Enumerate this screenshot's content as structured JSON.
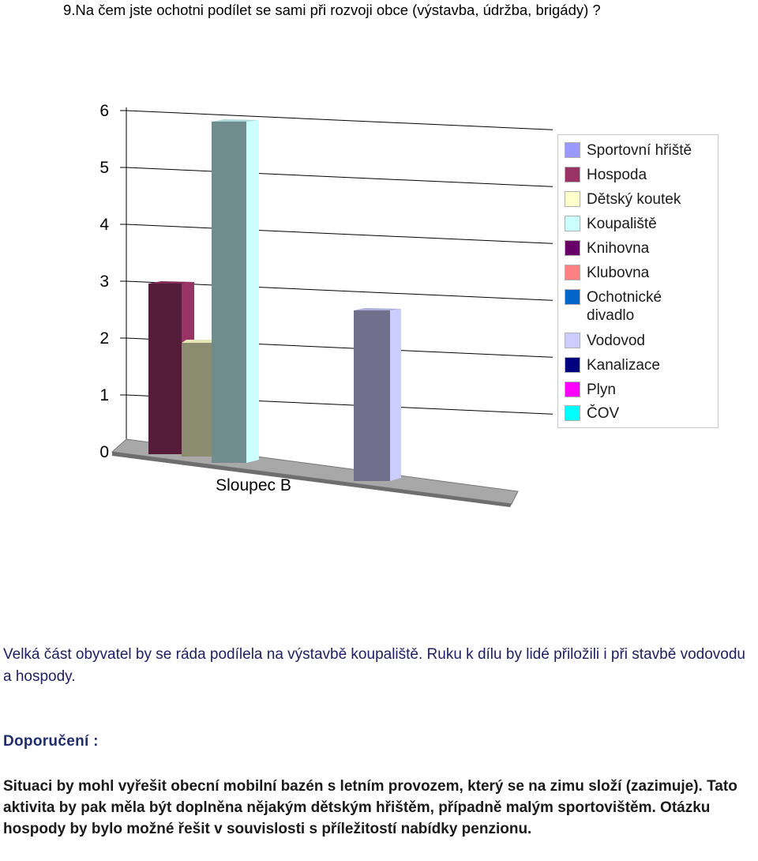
{
  "question": "9.Na čem jste ochotni podílet se sami při rozvoji obce (výstavba, údržba, brigády) ?",
  "chart_data": {
    "type": "bar",
    "categories": [
      "Sloupec B"
    ],
    "ylim": [
      0,
      6
    ],
    "yticks": [
      0,
      1,
      2,
      3,
      4,
      5,
      6
    ],
    "legend_position": "right",
    "series": [
      {
        "name": "Sportovní hřiště",
        "values": [
          0
        ],
        "color": "#9999ff"
      },
      {
        "name": "Hospoda",
        "values": [
          3
        ],
        "color": "#993366"
      },
      {
        "name": "Dětský koutek",
        "values": [
          2
        ],
        "color": "#ffffcc"
      },
      {
        "name": "Koupaliště",
        "values": [
          6
        ],
        "color": "#ccffff"
      },
      {
        "name": "Knihovna",
        "values": [
          0
        ],
        "color": "#660066"
      },
      {
        "name": "Klubovna",
        "values": [
          0
        ],
        "color": "#ff8080"
      },
      {
        "name": "Ochotnické divadlo",
        "values": [
          0
        ],
        "color": "#0066cc"
      },
      {
        "name": "Vodovod",
        "values": [
          3
        ],
        "color": "#ccccff"
      },
      {
        "name": "Kanalizace",
        "values": [
          0
        ],
        "color": "#000080"
      },
      {
        "name": "Plyn",
        "values": [
          0
        ],
        "color": "#ff00ff"
      },
      {
        "name": "ČOV",
        "values": [
          0
        ],
        "color": "#00ffff"
      }
    ]
  },
  "text": {
    "paragraph1": "Velká část obyvatel by se ráda podílela na výstavbě koupaliště. Ruku k dílu by lidé přiložili i při stavbě vodovodu a hospody.",
    "heading": "Doporučení :",
    "recommendation": "Situaci by mohl vyřešit obecní mobilní  bazén s letním provozem, který se na zimu složí (zazimuje). Tato aktivita by pak měla být doplněna nějakým dětským hřištěm, případně malým sportovištěm. Otázku hospody by bylo možné řešit v souvislosti s příležitostí nabídky penzionu."
  }
}
